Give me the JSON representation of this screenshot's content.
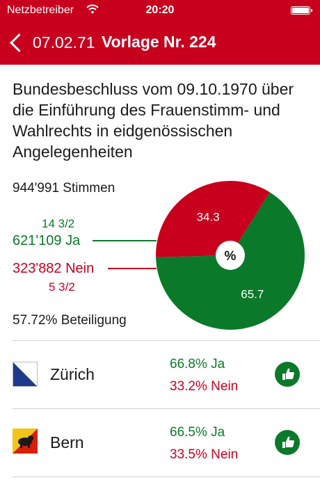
{
  "status_bar": {
    "carrier": "Netzbetreiber",
    "time": "20:20",
    "wifi_icon": "wifi-icon",
    "battery_icon": "battery-icon"
  },
  "nav": {
    "back_label": "07.02.71",
    "title": "Vorlage Nr. 224",
    "color": "#c8001e"
  },
  "heading": "Bundesbeschluss vom 09.10.1970 über die Einführung des Frauenstimm- und Wahlrechts in eidgenössischen Angelegenheiten",
  "result": {
    "total_votes": "944'991 Stimmen",
    "yes_votes": "621'109 Ja",
    "yes_cantons": "14 3/2",
    "no_votes": "323'882 Nein",
    "no_cantons": "5 3/2",
    "turnout": "57.72% Beteiligung",
    "pie_center": "%",
    "yes_color": "#0a7a2a",
    "no_color": "#c8001e"
  },
  "chart_data": {
    "type": "pie",
    "labels": [
      "Ja",
      "Nein"
    ],
    "values": [
      65.7,
      34.3
    ],
    "value_labels": [
      "65.7",
      "34.3"
    ],
    "center_label": "%",
    "colors": [
      "#0a7a2a",
      "#c8001e"
    ]
  },
  "cantons": [
    {
      "name": "Zürich",
      "yes": "66.8% Ja",
      "no": "33.2% Nein",
      "flag_icon": "zurich-flag-icon",
      "result_icon": "thumbs-up-icon"
    },
    {
      "name": "Bern",
      "yes": "66.5% Ja",
      "no": "33.5% Nein",
      "flag_icon": "bern-flag-icon",
      "result_icon": "thumbs-up-icon"
    }
  ]
}
